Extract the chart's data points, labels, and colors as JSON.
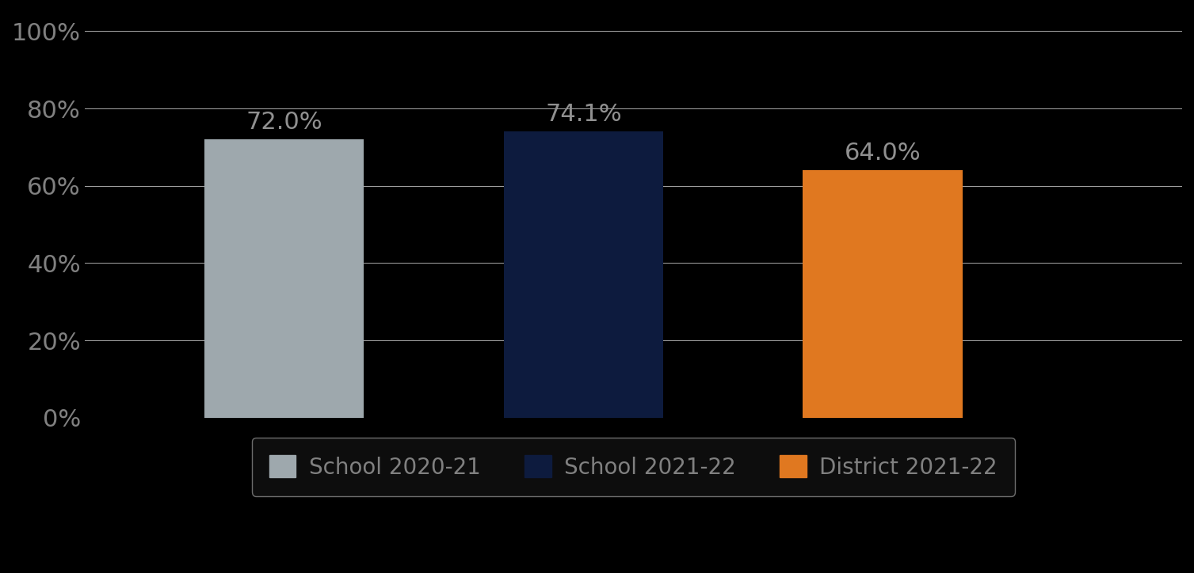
{
  "categories": [
    "School 2020-21",
    "School 2021-22",
    "District 2021-22"
  ],
  "values": [
    72.0,
    74.1,
    64.0
  ],
  "bar_colors": [
    "#9ea8ad",
    "#0d1b3e",
    "#e07820"
  ],
  "label_color": "#808080",
  "ylim": [
    0,
    100
  ],
  "ytick_labels": [
    "0%",
    "20%",
    "40%",
    "60%",
    "80%",
    "100%"
  ],
  "ytick_values": [
    0,
    20,
    40,
    60,
    80,
    100
  ],
  "background_color": "#000000",
  "grid_color": "#aaaaaa",
  "label_fontsize": 22,
  "tick_fontsize": 22,
  "legend_fontsize": 20,
  "value_label_color": "#909090",
  "legend_bg": "#111111",
  "legend_edge": "#888888"
}
